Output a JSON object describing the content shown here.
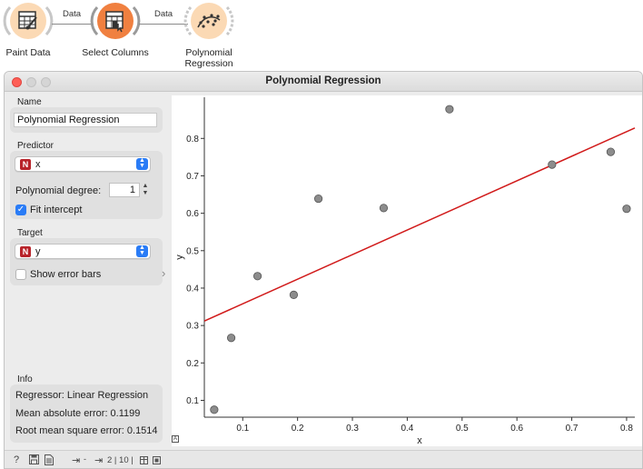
{
  "workflow": {
    "nodes": [
      {
        "label": "Paint Data",
        "icon": "paint-data-icon",
        "color": "#fbd9b4"
      },
      {
        "label": "Select Columns",
        "icon": "select-columns-icon",
        "color": "#f08040"
      },
      {
        "label": "Polynomial\nRegression",
        "icon": "polynomial-regression-icon",
        "color": "#fbd9b4"
      }
    ],
    "links": [
      "Data",
      "Data"
    ]
  },
  "window": {
    "title": "Polynomial Regression"
  },
  "controls": {
    "name_section": "Name",
    "name_value": "Polynomial Regression",
    "predictor_section": "Predictor",
    "predictor_badge": "N",
    "predictor_var": "x",
    "degree_label": "Polynomial degree:",
    "degree_value": "1",
    "fit_intercept_label": "Fit intercept",
    "fit_intercept_checked": true,
    "target_section": "Target",
    "target_badge": "N",
    "target_var": "y",
    "error_bars_label": "Show error bars",
    "error_bars_checked": false
  },
  "info": {
    "section": "Info",
    "regressor": "Regressor: Linear Regression",
    "mae": "Mean absolute error: 0.1199",
    "rmse": "Root mean square error: 0.1514"
  },
  "statusbar": {
    "data_counts": "2 | 10 |"
  },
  "chart_data": {
    "type": "scatter",
    "xlabel": "x",
    "ylabel": "y",
    "xlim": [
      0.03,
      0.815
    ],
    "ylim": [
      0.055,
      0.91
    ],
    "xticks": [
      0.1,
      0.2,
      0.3,
      0.4,
      0.5,
      0.6,
      0.7,
      0.8
    ],
    "yticks": [
      0.1,
      0.2,
      0.3,
      0.4,
      0.5,
      0.6,
      0.7,
      0.8
    ],
    "points": [
      {
        "x": 0.048,
        "y": 0.075
      },
      {
        "x": 0.079,
        "y": 0.267
      },
      {
        "x": 0.127,
        "y": 0.432
      },
      {
        "x": 0.193,
        "y": 0.382
      },
      {
        "x": 0.238,
        "y": 0.639
      },
      {
        "x": 0.357,
        "y": 0.614
      },
      {
        "x": 0.477,
        "y": 0.878
      },
      {
        "x": 0.664,
        "y": 0.73
      },
      {
        "x": 0.771,
        "y": 0.764
      },
      {
        "x": 0.8,
        "y": 0.612
      }
    ],
    "regression_line": {
      "x": [
        0.03,
        0.815
      ],
      "y": [
        0.312,
        0.828
      ]
    },
    "point_color": "#8c8c8c",
    "line_color": "#d11a1a"
  }
}
